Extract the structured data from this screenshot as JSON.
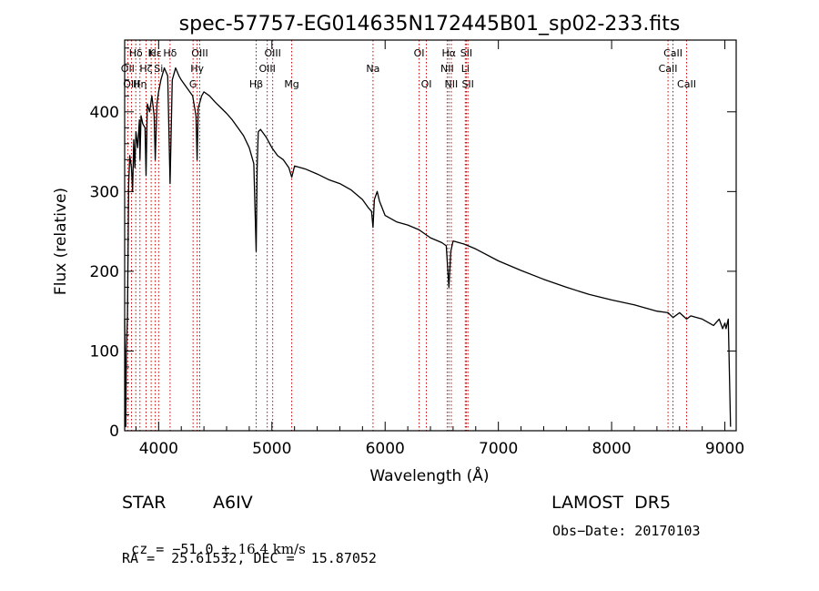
{
  "chart_data": {
    "type": "line",
    "title": "spec-57757-EG014635N172445B01_sp02-233.fits",
    "xlabel": "Wavelength (Å)",
    "ylabel": "Flux (relative)",
    "xlim": [
      3700,
      9100
    ],
    "ylim": [
      0,
      490
    ],
    "x_ticks": [
      4000,
      5000,
      6000,
      7000,
      8000,
      9000
    ],
    "y_ticks": [
      0,
      100,
      200,
      300,
      400
    ],
    "grid": false,
    "line_color": "#000000",
    "marker_color": "#cc0000",
    "series": [
      {
        "x": [
          3700,
          3710,
          3715,
          3725,
          3735,
          3745,
          3760,
          3770,
          3780,
          3790,
          3800,
          3815,
          3830,
          3835,
          3845,
          3860,
          3880,
          3889,
          3900,
          3920,
          3940,
          3960,
          3970,
          3985,
          4000,
          4020,
          4050,
          4080,
          4101,
          4120,
          4150,
          4180,
          4200,
          4250,
          4300,
          4330,
          4340,
          4350,
          4380,
          4400,
          4450,
          4500,
          4550,
          4600,
          4650,
          4700,
          4750,
          4800,
          4840,
          4861,
          4870,
          4880,
          4900,
          4950,
          5000,
          5050,
          5100,
          5150,
          5175,
          5200,
          5300,
          5400,
          5500,
          5600,
          5700,
          5800,
          5850,
          5880,
          5893,
          5905,
          5930,
          5950,
          6000,
          6100,
          6200,
          6300,
          6340,
          6400,
          6500,
          6540,
          6563,
          6580,
          6600,
          6650,
          6700,
          6800,
          7000,
          7200,
          7400,
          7600,
          7800,
          8000,
          8200,
          8400,
          8498,
          8542,
          8600,
          8662,
          8700,
          8800,
          8900,
          8950,
          8980,
          9000,
          9010,
          9030,
          9050
        ],
        "y": [
          140,
          5,
          100,
          145,
          310,
          345,
          330,
          300,
          365,
          330,
          375,
          355,
          390,
          340,
          395,
          385,
          380,
          320,
          410,
          400,
          420,
          395,
          340,
          410,
          425,
          440,
          455,
          445,
          310,
          440,
          455,
          445,
          440,
          430,
          420,
          395,
          340,
          405,
          420,
          425,
          420,
          412,
          405,
          398,
          390,
          380,
          370,
          355,
          335,
          225,
          330,
          375,
          378,
          368,
          355,
          345,
          340,
          330,
          318,
          332,
          328,
          322,
          315,
          310,
          302,
          290,
          280,
          275,
          255,
          290,
          300,
          288,
          270,
          262,
          258,
          252,
          248,
          242,
          236,
          232,
          180,
          225,
          238,
          236,
          234,
          228,
          213,
          201,
          190,
          180,
          171,
          164,
          158,
          150,
          148,
          142,
          148,
          140,
          144,
          140,
          132,
          140,
          128,
          135,
          128,
          140,
          5
        ]
      }
    ],
    "line_markers": [
      {
        "label": "Hδ",
        "x": 3798,
        "row": 0
      },
      {
        "label": "K",
        "x": 3934,
        "row": 0
      },
      {
        "label": "Hε",
        "x": 3970,
        "row": 0
      },
      {
        "label": "Hδ",
        "x": 4101,
        "row": 0
      },
      {
        "label": "OIII",
        "x": 4363,
        "row": 0
      },
      {
        "label": "OIII",
        "x": 5007,
        "row": 0
      },
      {
        "label": "OI",
        "x": 6300,
        "row": 0
      },
      {
        "label": "Hα",
        "x": 6563,
        "row": 0
      },
      {
        "label": "SII",
        "x": 6717,
        "row": 0
      },
      {
        "label": "CaII",
        "x": 8542,
        "row": 0
      },
      {
        "label": "OII",
        "x": 3727,
        "row": 1
      },
      {
        "label": "Hζ",
        "x": 3889,
        "row": 1
      },
      {
        "label": "Si",
        "x": 4000,
        "row": 1
      },
      {
        "label": "Hγ",
        "x": 4340,
        "row": 1
      },
      {
        "label": "OIII",
        "x": 4959,
        "row": 1
      },
      {
        "label": "Na",
        "x": 5893,
        "row": 1
      },
      {
        "label": "NII",
        "x": 6548,
        "row": 1
      },
      {
        "label": "Li",
        "x": 6708,
        "row": 1
      },
      {
        "label": "CaII",
        "x": 8498,
        "row": 1
      },
      {
        "label": "OIII",
        "x": 3760,
        "row": 2
      },
      {
        "label": "Hη",
        "x": 3835,
        "row": 2
      },
      {
        "label": "G",
        "x": 4304,
        "row": 2
      },
      {
        "label": "Hβ",
        "x": 4861,
        "row": 2
      },
      {
        "label": "Mg",
        "x": 5175,
        "row": 2
      },
      {
        "label": "OI",
        "x": 6364,
        "row": 2
      },
      {
        "label": "NII",
        "x": 6584,
        "row": 2
      },
      {
        "label": "SII",
        "x": 6731,
        "row": 2
      },
      {
        "label": "CaII",
        "x": 8662,
        "row": 2
      }
    ]
  },
  "info": {
    "object_class": "STAR",
    "subclass": "A6IV",
    "survey": "LAMOST  DR5",
    "cz_prefix": "cz = −51.0 ± ",
    "cz_value": "16.4 km/s",
    "obs_date": "Obs−Date: 20170103",
    "coords": "RA =  25.61532, DEC =  15.87052"
  }
}
